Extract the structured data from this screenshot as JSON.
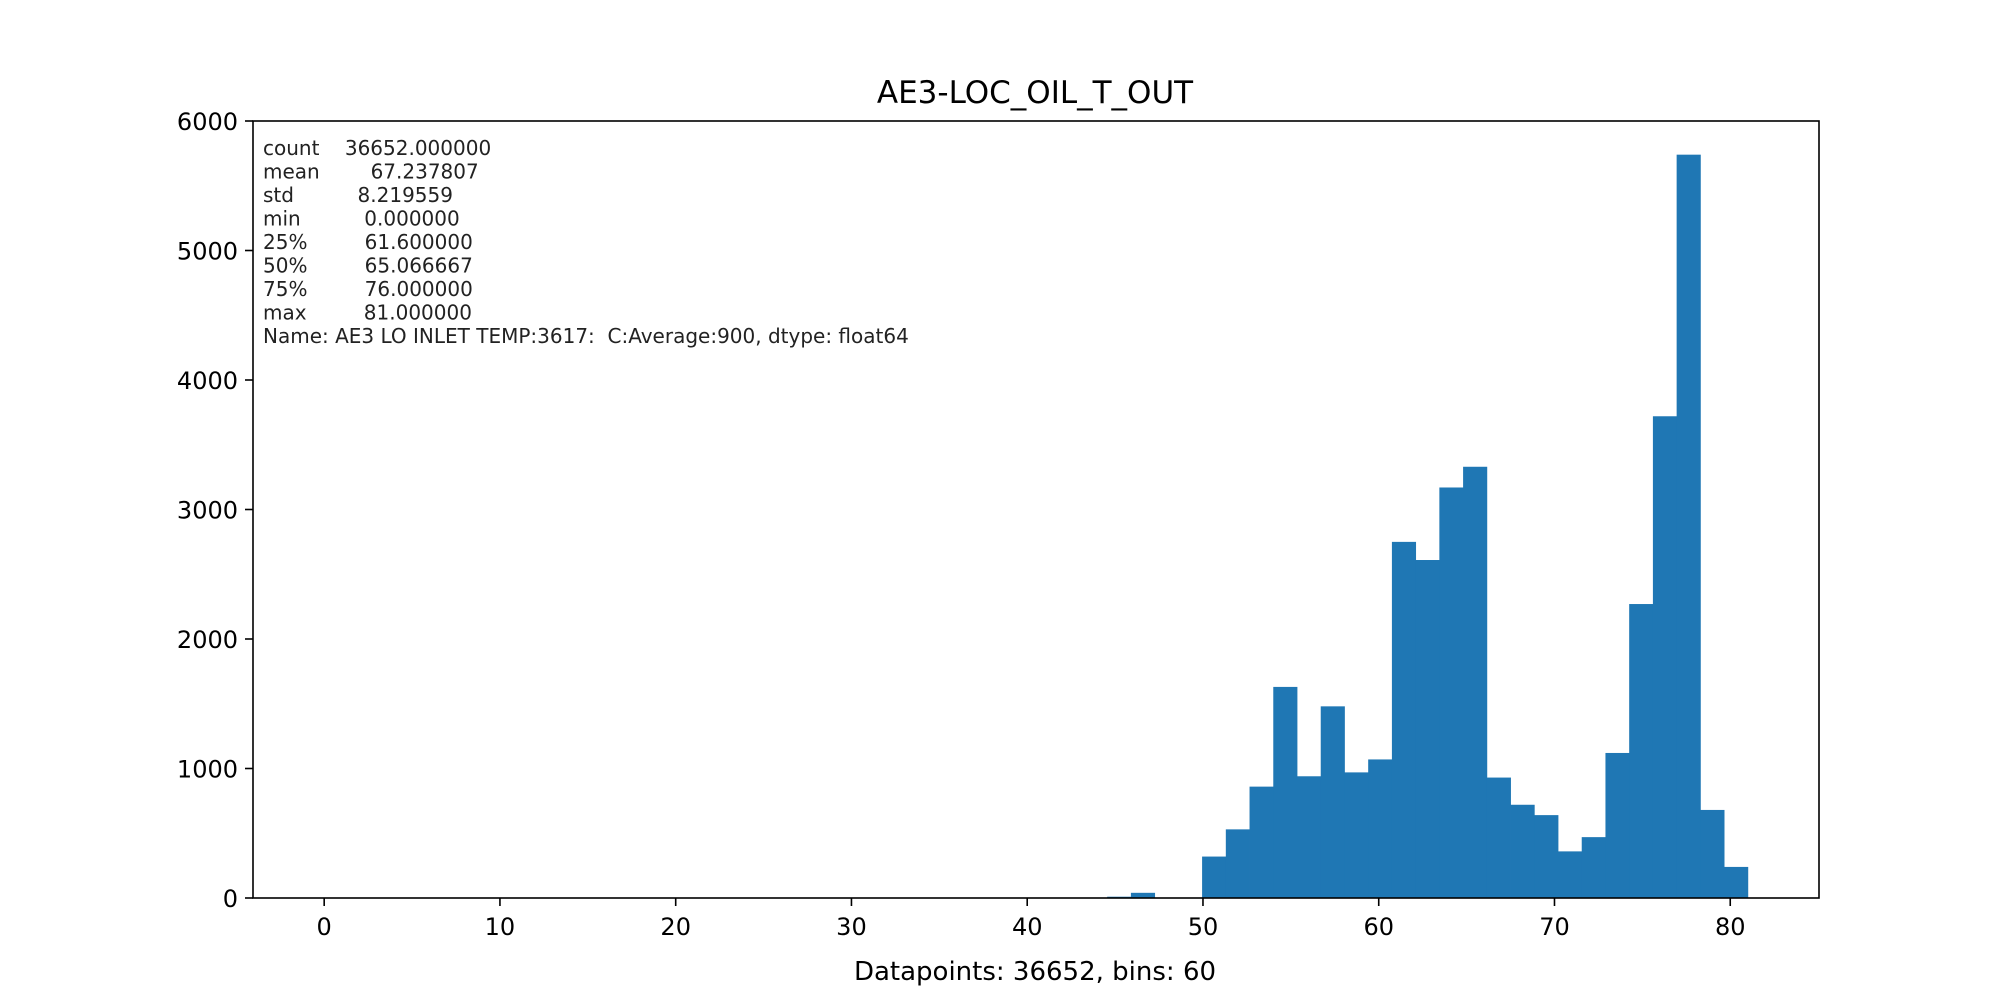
{
  "chart_data": {
    "type": "bar",
    "title": "AE3-LOC_OIL_T_OUT",
    "xlabel": "Datapoints: 36652, bins: 60",
    "ylabel": "",
    "xlim": [
      -4.05,
      85.05
    ],
    "ylim": [
      0,
      6000
    ],
    "xticks": [
      "0",
      "10",
      "20",
      "30",
      "40",
      "50",
      "60",
      "70",
      "80"
    ],
    "xtick_values": [
      0,
      10,
      20,
      30,
      40,
      50,
      60,
      70,
      80
    ],
    "yticks": [
      "0",
      "1000",
      "2000",
      "3000",
      "4000",
      "5000",
      "6000"
    ],
    "ytick_values": [
      0,
      1000,
      2000,
      3000,
      4000,
      5000,
      6000
    ],
    "bin_range": [
      0,
      81
    ],
    "bins": 60,
    "values": [
      0,
      0,
      0,
      0,
      0,
      0,
      0,
      0,
      0,
      0,
      0,
      0,
      0,
      0,
      0,
      0,
      0,
      0,
      0,
      0,
      0,
      0,
      0,
      0,
      0,
      0,
      0,
      0,
      0,
      0,
      0,
      0,
      0,
      10,
      40,
      0,
      0,
      320,
      530,
      860,
      1630,
      940,
      1480,
      970,
      1070,
      2750,
      2610,
      3170,
      3330,
      930,
      720,
      640,
      360,
      470,
      1120,
      2270,
      3720,
      5740,
      680,
      240
    ],
    "bar_color": "#1f77b4",
    "grid": false,
    "legend": "none",
    "annotation_lines": [
      "count    36652.000000",
      "mean        67.237807",
      "std          8.219559",
      "min          0.000000",
      "25%         61.600000",
      "50%         65.066667",
      "75%         76.000000",
      "max         81.000000",
      "Name: AE3 LO INLET TEMP:3617:  C:Average:900, dtype: float64"
    ]
  }
}
